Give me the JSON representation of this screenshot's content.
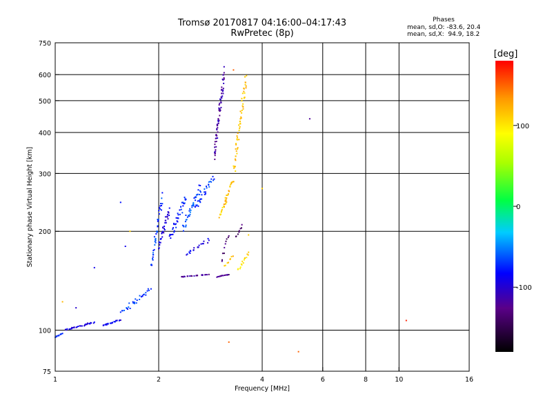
{
  "header": {
    "title_line1": "Tromsø 20170817 04:16:00–04:17:43",
    "title_line2": "RwPretec (8p)"
  },
  "phases": {
    "title": "Phases",
    "line_o": "mean, sd,O: -83.6, 20.4",
    "line_x": "mean, sd,X:  94.9, 18.2"
  },
  "colorbar": {
    "label": "[deg]",
    "ticks": [
      {
        "value": 100,
        "label": "100"
      },
      {
        "value": 0,
        "label": "0"
      },
      {
        "value": -100,
        "label": "-100"
      }
    ],
    "range": [
      -180,
      180
    ]
  },
  "chart_data": {
    "type": "scatter",
    "title": "Tromsø 20170817 04:16:00–04:17:43",
    "subtitle": "RwPretec (8p)",
    "xlabel": "Frequency [MHz]",
    "ylabel": "Stationary phase Virtual Height [km]",
    "xscale": "log",
    "yscale": "log",
    "xlim": [
      1,
      16
    ],
    "ylim": [
      75,
      750
    ],
    "xticks": [
      {
        "value": 1,
        "label": "1"
      },
      {
        "value": 2,
        "label": "2"
      },
      {
        "value": 4,
        "label": "4"
      },
      {
        "value": 6,
        "label": "6"
      },
      {
        "value": 8,
        "label": "8"
      },
      {
        "value": 10,
        "label": "10"
      },
      {
        "value": 16,
        "label": "16"
      }
    ],
    "yticks": [
      {
        "value": 75,
        "label": "75"
      },
      {
        "value": 100,
        "label": "100"
      },
      {
        "value": 200,
        "label": "200"
      },
      {
        "value": 300,
        "label": "300"
      },
      {
        "value": 400,
        "label": "400"
      },
      {
        "value": 500,
        "label": "500"
      },
      {
        "value": 600,
        "label": "600"
      },
      {
        "value": 750,
        "label": "750"
      }
    ],
    "xgrid": [
      1,
      2,
      4,
      6,
      8,
      10,
      16
    ],
    "ygrid": [
      75,
      100,
      200,
      300,
      400,
      500,
      600,
      750
    ],
    "color_by": "phase (deg)",
    "segments": [
      {
        "f": [
          1.0,
          1.05
        ],
        "h": [
          95,
          98
        ],
        "phase": -75,
        "n": 10
      },
      {
        "f": [
          1.07,
          1.3
        ],
        "h": [
          100,
          106
        ],
        "phase": -95,
        "n": 30
      },
      {
        "f": [
          1.38,
          1.55
        ],
        "h": [
          103,
          108
        ],
        "phase": -90,
        "n": 25
      },
      {
        "f": [
          1.55,
          1.9
        ],
        "h": [
          112,
          135
        ],
        "phase": -70,
        "n": 30
      },
      {
        "f": [
          1.9,
          2.05
        ],
        "h": [
          150,
          270
        ],
        "phase": -70,
        "n": 40
      },
      {
        "f": [
          2.0,
          2.15
        ],
        "h": [
          175,
          240
        ],
        "phase": -95,
        "n": 35
      },
      {
        "f": [
          2.15,
          2.4
        ],
        "h": [
          185,
          260
        ],
        "phase": -80,
        "n": 40
      },
      {
        "f": [
          2.35,
          2.65
        ],
        "h": [
          200,
          280
        ],
        "phase": -65,
        "n": 40
      },
      {
        "f": [
          2.55,
          2.9
        ],
        "h": [
          230,
          300
        ],
        "phase": -70,
        "n": 30
      },
      {
        "f": [
          2.4,
          2.8
        ],
        "h": [
          168,
          190
        ],
        "phase": -90,
        "n": 20
      },
      {
        "f": [
          2.3,
          2.8
        ],
        "h": [
          145,
          148
        ],
        "phase": -120,
        "n": 25
      },
      {
        "f": [
          2.95,
          3.2
        ],
        "h": [
          145,
          148
        ],
        "phase": -125,
        "n": 15
      },
      {
        "f": [
          2.9,
          3.1
        ],
        "h": [
          320,
          640
        ],
        "phase": -115,
        "n": 70
      },
      {
        "f": [
          3.05,
          3.2
        ],
        "h": [
          160,
          200
        ],
        "phase": -130,
        "n": 10
      },
      {
        "f": [
          3.0,
          3.15
        ],
        "h": [
          220,
          250
        ],
        "phase": 110,
        "n": 15
      },
      {
        "f": [
          3.1,
          3.3
        ],
        "h": [
          240,
          290
        ],
        "phase": 120,
        "n": 20
      },
      {
        "f": [
          3.3,
          3.6
        ],
        "h": [
          280,
          640
        ],
        "phase": 115,
        "n": 60
      },
      {
        "f": [
          3.4,
          3.65
        ],
        "h": [
          150,
          175
        ],
        "phase": 105,
        "n": 15
      },
      {
        "f": [
          3.35,
          3.5
        ],
        "h": [
          190,
          210
        ],
        "phase": -140,
        "n": 8
      },
      {
        "f": [
          3.1,
          3.3
        ],
        "h": [
          155,
          170
        ],
        "phase": 120,
        "n": 8
      }
    ],
    "isolated_points": [
      {
        "f": 1.05,
        "h": 122,
        "phase": 120
      },
      {
        "f": 1.15,
        "h": 117,
        "phase": -100
      },
      {
        "f": 1.3,
        "h": 155,
        "phase": -90
      },
      {
        "f": 1.55,
        "h": 245,
        "phase": -80
      },
      {
        "f": 1.6,
        "h": 180,
        "phase": -90
      },
      {
        "f": 1.65,
        "h": 200,
        "phase": 110
      },
      {
        "f": 3.3,
        "h": 620,
        "phase": 150
      },
      {
        "f": 3.2,
        "h": 92,
        "phase": 150
      },
      {
        "f": 5.1,
        "h": 86,
        "phase": 150
      },
      {
        "f": 5.5,
        "h": 440,
        "phase": -120
      },
      {
        "f": 10.5,
        "h": 107,
        "phase": 170
      },
      {
        "f": 4.0,
        "h": 270,
        "phase": 110
      },
      {
        "f": 3.65,
        "h": 195,
        "phase": 110
      }
    ]
  }
}
